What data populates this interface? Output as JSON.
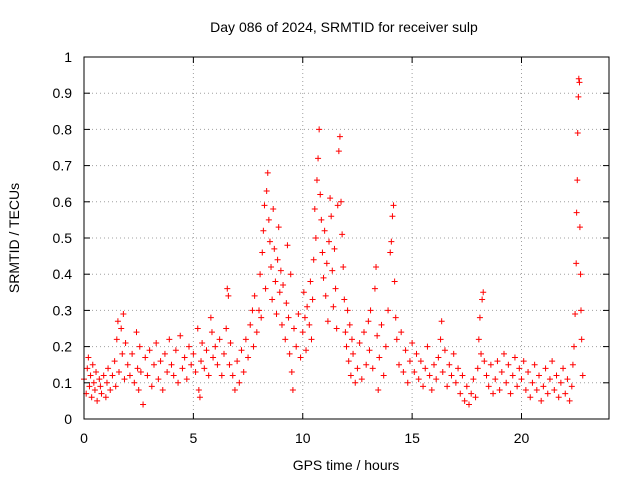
{
  "chart_data": {
    "type": "scatter",
    "title": "Day 086 of 2024, SRMTID for receiver sulp",
    "xlabel": "GPS time / hours",
    "ylabel": "SRMTID / TECUs",
    "xlim": [
      0,
      24
    ],
    "ylim": [
      0,
      1
    ],
    "grid": true,
    "marker": "+",
    "color": "#ff0000",
    "xticks": [
      {
        "value": 0,
        "label": "0"
      },
      {
        "value": 5,
        "label": "5"
      },
      {
        "value": 10,
        "label": "10"
      },
      {
        "value": 15,
        "label": "15"
      },
      {
        "value": 20,
        "label": "20"
      }
    ],
    "yticks": [
      {
        "value": 0,
        "label": "0"
      },
      {
        "value": 0.1,
        "label": "0.1"
      },
      {
        "value": 0.2,
        "label": "0.2"
      },
      {
        "value": 0.3,
        "label": "0.3"
      },
      {
        "value": 0.4,
        "label": "0.4"
      },
      {
        "value": 0.5,
        "label": "0.5"
      },
      {
        "value": 0.6,
        "label": "0.6"
      },
      {
        "value": 0.7,
        "label": "0.7"
      },
      {
        "value": 0.8,
        "label": "0.8"
      },
      {
        "value": 0.9,
        "label": "0.9"
      },
      {
        "value": 1,
        "label": "1"
      }
    ],
    "points": [
      [
        0.0,
        0.11
      ],
      [
        0.1,
        0.07
      ],
      [
        0.15,
        0.14
      ],
      [
        0.2,
        0.17
      ],
      [
        0.25,
        0.09
      ],
      [
        0.3,
        0.12
      ],
      [
        0.35,
        0.06
      ],
      [
        0.4,
        0.15
      ],
      [
        0.45,
        0.1
      ],
      [
        0.5,
        0.08
      ],
      [
        0.55,
        0.13
      ],
      [
        0.6,
        0.05
      ],
      [
        0.7,
        0.11
      ],
      [
        0.75,
        0.09
      ],
      [
        0.8,
        0.07
      ],
      [
        0.9,
        0.12
      ],
      [
        1.0,
        0.06
      ],
      [
        1.05,
        0.1
      ],
      [
        1.1,
        0.14
      ],
      [
        1.2,
        0.08
      ],
      [
        1.3,
        0.12
      ],
      [
        1.4,
        0.16
      ],
      [
        1.45,
        0.09
      ],
      [
        1.5,
        0.22
      ],
      [
        1.55,
        0.27
      ],
      [
        1.6,
        0.13
      ],
      [
        1.7,
        0.25
      ],
      [
        1.75,
        0.18
      ],
      [
        1.8,
        0.29
      ],
      [
        1.85,
        0.11
      ],
      [
        1.9,
        0.21
      ],
      [
        2.0,
        0.15
      ],
      [
        2.1,
        0.12
      ],
      [
        2.2,
        0.18
      ],
      [
        2.3,
        0.1
      ],
      [
        2.4,
        0.24
      ],
      [
        2.45,
        0.14
      ],
      [
        2.5,
        0.08
      ],
      [
        2.55,
        0.2
      ],
      [
        2.6,
        0.13
      ],
      [
        2.7,
        0.04
      ],
      [
        2.8,
        0.17
      ],
      [
        2.9,
        0.12
      ],
      [
        3.0,
        0.19
      ],
      [
        3.1,
        0.09
      ],
      [
        3.2,
        0.15
      ],
      [
        3.3,
        0.21
      ],
      [
        3.4,
        0.11
      ],
      [
        3.5,
        0.16
      ],
      [
        3.6,
        0.08
      ],
      [
        3.7,
        0.18
      ],
      [
        3.8,
        0.13
      ],
      [
        3.9,
        0.22
      ],
      [
        4.0,
        0.15
      ],
      [
        4.1,
        0.12
      ],
      [
        4.2,
        0.19
      ],
      [
        4.3,
        0.1
      ],
      [
        4.4,
        0.23
      ],
      [
        4.5,
        0.14
      ],
      [
        4.6,
        0.17
      ],
      [
        4.7,
        0.11
      ],
      [
        4.8,
        0.2
      ],
      [
        4.9,
        0.15
      ],
      [
        5.0,
        0.18
      ],
      [
        5.1,
        0.13
      ],
      [
        5.2,
        0.25
      ],
      [
        5.25,
        0.08
      ],
      [
        5.3,
        0.06
      ],
      [
        5.35,
        0.16
      ],
      [
        5.4,
        0.21
      ],
      [
        5.5,
        0.14
      ],
      [
        5.6,
        0.19
      ],
      [
        5.7,
        0.12
      ],
      [
        5.8,
        0.28
      ],
      [
        5.85,
        0.24
      ],
      [
        5.9,
        0.17
      ],
      [
        6.0,
        0.2
      ],
      [
        6.1,
        0.15
      ],
      [
        6.2,
        0.22
      ],
      [
        6.3,
        0.12
      ],
      [
        6.4,
        0.18
      ],
      [
        6.5,
        0.25
      ],
      [
        6.55,
        0.36
      ],
      [
        6.6,
        0.34
      ],
      [
        6.65,
        0.15
      ],
      [
        6.7,
        0.21
      ],
      [
        6.8,
        0.12
      ],
      [
        6.9,
        0.08
      ],
      [
        7.0,
        0.16
      ],
      [
        7.1,
        0.1
      ],
      [
        7.2,
        0.19
      ],
      [
        7.3,
        0.13
      ],
      [
        7.4,
        0.22
      ],
      [
        7.5,
        0.17
      ],
      [
        7.6,
        0.26
      ],
      [
        7.7,
        0.3
      ],
      [
        7.75,
        0.2
      ],
      [
        7.8,
        0.34
      ],
      [
        7.9,
        0.24
      ],
      [
        8.0,
        0.3
      ],
      [
        8.05,
        0.4
      ],
      [
        8.1,
        0.28
      ],
      [
        8.15,
        0.46
      ],
      [
        8.2,
        0.52
      ],
      [
        8.25,
        0.59
      ],
      [
        8.3,
        0.36
      ],
      [
        8.35,
        0.63
      ],
      [
        8.4,
        0.68
      ],
      [
        8.45,
        0.55
      ],
      [
        8.5,
        0.49
      ],
      [
        8.55,
        0.42
      ],
      [
        8.6,
        0.33
      ],
      [
        8.65,
        0.58
      ],
      [
        8.7,
        0.47
      ],
      [
        8.75,
        0.38
      ],
      [
        8.8,
        0.29
      ],
      [
        8.85,
        0.44
      ],
      [
        8.9,
        0.53
      ],
      [
        8.95,
        0.35
      ],
      [
        9.0,
        0.41
      ],
      [
        9.05,
        0.26
      ],
      [
        9.1,
        0.37
      ],
      [
        9.2,
        0.22
      ],
      [
        9.25,
        0.32
      ],
      [
        9.3,
        0.48
      ],
      [
        9.35,
        0.28
      ],
      [
        9.4,
        0.18
      ],
      [
        9.45,
        0.4
      ],
      [
        9.5,
        0.13
      ],
      [
        9.55,
        0.08
      ],
      [
        9.6,
        0.25
      ],
      [
        9.7,
        0.2
      ],
      [
        9.8,
        0.29
      ],
      [
        9.9,
        0.17
      ],
      [
        10.0,
        0.24
      ],
      [
        10.05,
        0.35
      ],
      [
        10.1,
        0.28
      ],
      [
        10.15,
        0.19
      ],
      [
        10.2,
        0.31
      ],
      [
        10.3,
        0.26
      ],
      [
        10.35,
        0.38
      ],
      [
        10.4,
        0.22
      ],
      [
        10.45,
        0.33
      ],
      [
        10.5,
        0.44
      ],
      [
        10.55,
        0.58
      ],
      [
        10.6,
        0.5
      ],
      [
        10.65,
        0.66
      ],
      [
        10.7,
        0.72
      ],
      [
        10.75,
        0.8
      ],
      [
        10.8,
        0.62
      ],
      [
        10.85,
        0.55
      ],
      [
        10.9,
        0.46
      ],
      [
        10.95,
        0.39
      ],
      [
        11.0,
        0.52
      ],
      [
        11.05,
        0.34
      ],
      [
        11.1,
        0.43
      ],
      [
        11.15,
        0.27
      ],
      [
        11.2,
        0.49
      ],
      [
        11.25,
        0.61
      ],
      [
        11.3,
        0.56
      ],
      [
        11.35,
        0.41
      ],
      [
        11.4,
        0.31
      ],
      [
        11.45,
        0.47
      ],
      [
        11.5,
        0.36
      ],
      [
        11.55,
        0.25
      ],
      [
        11.6,
        0.59
      ],
      [
        11.65,
        0.74
      ],
      [
        11.7,
        0.78
      ],
      [
        11.75,
        0.6
      ],
      [
        11.8,
        0.51
      ],
      [
        11.85,
        0.42
      ],
      [
        11.9,
        0.33
      ],
      [
        11.95,
        0.24
      ],
      [
        12.0,
        0.2
      ],
      [
        12.05,
        0.3
      ],
      [
        12.1,
        0.16
      ],
      [
        12.15,
        0.26
      ],
      [
        12.2,
        0.12
      ],
      [
        12.25,
        0.22
      ],
      [
        12.3,
        0.18
      ],
      [
        12.4,
        0.1
      ],
      [
        12.5,
        0.14
      ],
      [
        12.6,
        0.21
      ],
      [
        12.7,
        0.11
      ],
      [
        12.8,
        0.24
      ],
      [
        12.9,
        0.15
      ],
      [
        13.0,
        0.27
      ],
      [
        13.05,
        0.19
      ],
      [
        13.1,
        0.3
      ],
      [
        13.2,
        0.14
      ],
      [
        13.3,
        0.36
      ],
      [
        13.35,
        0.42
      ],
      [
        13.4,
        0.23
      ],
      [
        13.45,
        0.08
      ],
      [
        13.5,
        0.17
      ],
      [
        13.6,
        0.26
      ],
      [
        13.7,
        0.12
      ],
      [
        13.8,
        0.2
      ],
      [
        13.9,
        0.3
      ],
      [
        14.0,
        0.46
      ],
      [
        14.05,
        0.49
      ],
      [
        14.1,
        0.56
      ],
      [
        14.15,
        0.59
      ],
      [
        14.2,
        0.38
      ],
      [
        14.25,
        0.28
      ],
      [
        14.3,
        0.22
      ],
      [
        14.4,
        0.15
      ],
      [
        14.5,
        0.24
      ],
      [
        14.6,
        0.13
      ],
      [
        14.7,
        0.19
      ],
      [
        14.8,
        0.1
      ],
      [
        14.9,
        0.16
      ],
      [
        15.0,
        0.21
      ],
      [
        15.1,
        0.13
      ],
      [
        15.2,
        0.18
      ],
      [
        15.3,
        0.11
      ],
      [
        15.4,
        0.16
      ],
      [
        15.5,
        0.09
      ],
      [
        15.6,
        0.14
      ],
      [
        15.7,
        0.2
      ],
      [
        15.8,
        0.12
      ],
      [
        15.9,
        0.08
      ],
      [
        16.0,
        0.15
      ],
      [
        16.1,
        0.11
      ],
      [
        16.2,
        0.17
      ],
      [
        16.3,
        0.22
      ],
      [
        16.35,
        0.27
      ],
      [
        16.4,
        0.13
      ],
      [
        16.5,
        0.19
      ],
      [
        16.6,
        0.09
      ],
      [
        16.7,
        0.15
      ],
      [
        16.8,
        0.12
      ],
      [
        16.9,
        0.18
      ],
      [
        17.0,
        0.1
      ],
      [
        17.1,
        0.14
      ],
      [
        17.2,
        0.07
      ],
      [
        17.3,
        0.12
      ],
      [
        17.4,
        0.05
      ],
      [
        17.5,
        0.09
      ],
      [
        17.6,
        0.04
      ],
      [
        17.7,
        0.07
      ],
      [
        17.8,
        0.11
      ],
      [
        17.9,
        0.06
      ],
      [
        18.0,
        0.14
      ],
      [
        18.05,
        0.22
      ],
      [
        18.1,
        0.28
      ],
      [
        18.15,
        0.18
      ],
      [
        18.2,
        0.33
      ],
      [
        18.25,
        0.35
      ],
      [
        18.3,
        0.16
      ],
      [
        18.4,
        0.12
      ],
      [
        18.5,
        0.09
      ],
      [
        18.6,
        0.15
      ],
      [
        18.7,
        0.07
      ],
      [
        18.8,
        0.11
      ],
      [
        18.9,
        0.16
      ],
      [
        19.0,
        0.08
      ],
      [
        19.1,
        0.13
      ],
      [
        19.2,
        0.18
      ],
      [
        19.3,
        0.1
      ],
      [
        19.4,
        0.15
      ],
      [
        19.5,
        0.07
      ],
      [
        19.6,
        0.12
      ],
      [
        19.7,
        0.17
      ],
      [
        19.8,
        0.09
      ],
      [
        19.9,
        0.14
      ],
      [
        20.0,
        0.11
      ],
      [
        20.1,
        0.16
      ],
      [
        20.2,
        0.08
      ],
      [
        20.3,
        0.13
      ],
      [
        20.4,
        0.06
      ],
      [
        20.5,
        0.1
      ],
      [
        20.6,
        0.15
      ],
      [
        20.7,
        0.08
      ],
      [
        20.8,
        0.12
      ],
      [
        20.9,
        0.05
      ],
      [
        21.0,
        0.09
      ],
      [
        21.1,
        0.14
      ],
      [
        21.2,
        0.07
      ],
      [
        21.3,
        0.11
      ],
      [
        21.4,
        0.16
      ],
      [
        21.5,
        0.08
      ],
      [
        21.6,
        0.12
      ],
      [
        21.7,
        0.06
      ],
      [
        21.8,
        0.1
      ],
      [
        21.9,
        0.14
      ],
      [
        22.0,
        0.07
      ],
      [
        22.1,
        0.11
      ],
      [
        22.2,
        0.05
      ],
      [
        22.3,
        0.09
      ],
      [
        22.35,
        0.15
      ],
      [
        22.4,
        0.2
      ],
      [
        22.45,
        0.29
      ],
      [
        22.5,
        0.43
      ],
      [
        22.52,
        0.57
      ],
      [
        22.55,
        0.66
      ],
      [
        22.57,
        0.79
      ],
      [
        22.6,
        0.89
      ],
      [
        22.62,
        0.94
      ],
      [
        22.65,
        0.93
      ],
      [
        22.67,
        0.53
      ],
      [
        22.7,
        0.4
      ],
      [
        22.72,
        0.3
      ],
      [
        22.75,
        0.22
      ],
      [
        22.8,
        0.12
      ]
    ]
  }
}
